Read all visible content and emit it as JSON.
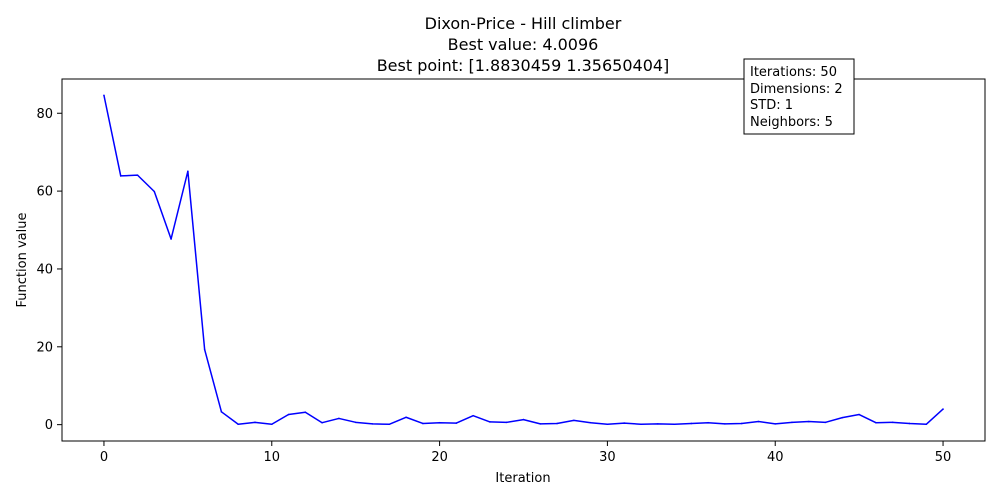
{
  "chart_data": {
    "type": "line",
    "title_lines": [
      "Dixon-Price - Hill climber",
      "Best value: 4.0096",
      "Best point: [1.8830459  1.35650404]"
    ],
    "xlabel": "Iteration",
    "ylabel": "Function value",
    "xlim": [
      -2.5,
      52.5
    ],
    "ylim": [
      -4.2,
      88.8
    ],
    "xticks": [
      0,
      10,
      20,
      30,
      40,
      50
    ],
    "yticks": [
      0,
      20,
      40,
      60,
      80
    ],
    "grid": false,
    "series": [
      {
        "color": "#0000ff",
        "x": [
          0,
          1,
          2,
          3,
          4,
          5,
          6,
          7,
          8,
          9,
          10,
          11,
          12,
          13,
          14,
          15,
          16,
          17,
          18,
          19,
          20,
          21,
          22,
          23,
          24,
          25,
          26,
          27,
          28,
          29,
          30,
          31,
          32,
          33,
          34,
          35,
          36,
          37,
          38,
          39,
          40,
          41,
          42,
          43,
          44,
          45,
          46,
          47,
          48,
          49,
          50
        ],
        "values": [
          84.6,
          63.9,
          64.1,
          59.9,
          47.7,
          65.1,
          19.3,
          3.3,
          0.1,
          0.6,
          0.1,
          2.6,
          3.2,
          0.5,
          1.6,
          0.6,
          0.2,
          0.1,
          1.9,
          0.3,
          0.5,
          0.4,
          2.3,
          0.7,
          0.6,
          1.3,
          0.2,
          0.3,
          1.1,
          0.5,
          0.1,
          0.4,
          0.1,
          0.2,
          0.1,
          0.3,
          0.5,
          0.2,
          0.3,
          0.8,
          0.2,
          0.6,
          0.8,
          0.6,
          1.8,
          2.6,
          0.5,
          0.6,
          0.3,
          0.1,
          4.0
        ]
      }
    ],
    "info_box": {
      "lines": [
        "Iterations: 50",
        "Dimensions: 2",
        "STD: 1",
        "Neighbors: 5"
      ],
      "placement": "top-right"
    }
  }
}
